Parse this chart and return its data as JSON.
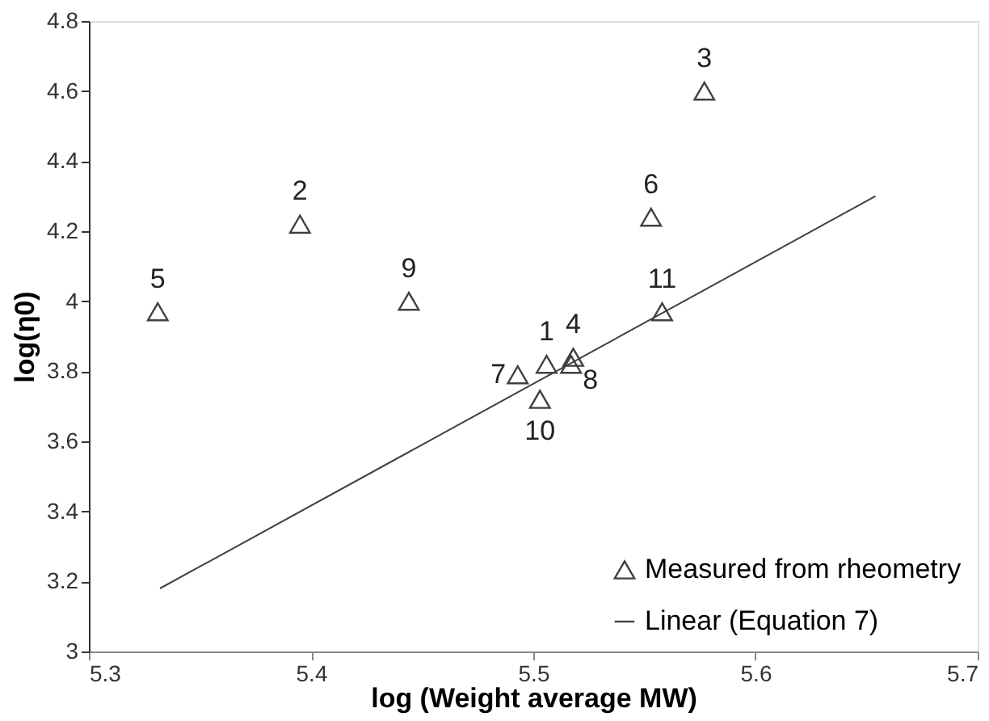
{
  "chart_data": {
    "type": "scatter",
    "xlabel": "log (Weight average MW)",
    "ylabel": "log(η0)",
    "xlim": [
      5.3,
      5.7
    ],
    "xticks": [
      5.3,
      5.4,
      5.5,
      5.6,
      5.7
    ],
    "ylim": [
      3,
      4.8
    ],
    "yticks": [
      3,
      3.2,
      3.4,
      3.6,
      3.8,
      4,
      4.2,
      4.4,
      4.6,
      4.8
    ],
    "grid": false,
    "legend": "bottom right",
    "series": [
      {
        "name": "Measured from rheometry",
        "color": "#404040",
        "marker": "triangle",
        "x": [
          5.506,
          5.395,
          5.577,
          5.518,
          5.331,
          5.553,
          5.493,
          5.517,
          5.444,
          5.503,
          5.558
        ],
        "values": [
          3.82,
          4.22,
          4.6,
          3.84,
          3.97,
          4.24,
          3.79,
          3.82,
          4.0,
          3.72,
          3.97
        ]
      },
      {
        "name": "Linear (Equation 7)",
        "type": "line",
        "color": "#404040",
        "line_style": "solid",
        "x": [
          5.332,
          5.654
        ],
        "values": [
          3.18,
          4.3
        ]
      }
    ],
    "annotations": [
      {
        "text": "1",
        "x": 5.506,
        "y": 3.82
      },
      {
        "text": "2",
        "x": 5.395,
        "y": 4.22
      },
      {
        "text": "3",
        "x": 5.577,
        "y": 4.6
      },
      {
        "text": "4",
        "x": 5.518,
        "y": 3.84
      },
      {
        "text": "5",
        "x": 5.331,
        "y": 3.97
      },
      {
        "text": "6",
        "x": 5.553,
        "y": 4.24
      },
      {
        "text": "7",
        "x": 5.493,
        "y": 3.79
      },
      {
        "text": "8",
        "x": 5.517,
        "y": 3.82
      },
      {
        "text": "9",
        "x": 5.444,
        "y": 4.0
      },
      {
        "text": "10",
        "x": 5.503,
        "y": 3.72
      },
      {
        "text": "11",
        "x": 5.558,
        "y": 3.97
      }
    ]
  }
}
